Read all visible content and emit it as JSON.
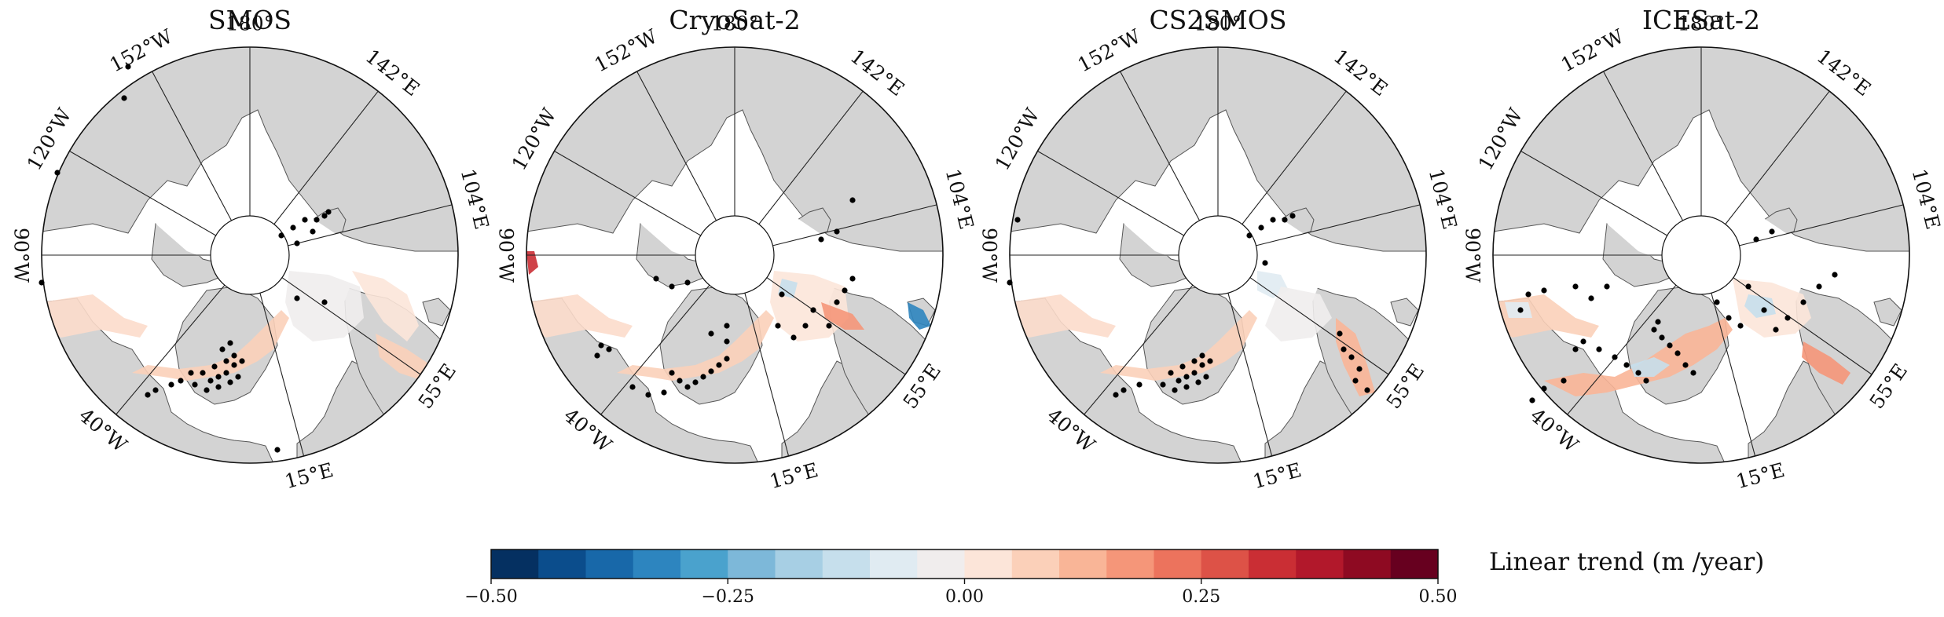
{
  "panels": [
    {
      "title": "SMOS"
    },
    {
      "title": "CryoSat-2"
    },
    {
      "title": "CS2SMOS"
    },
    {
      "title": "ICESat-2"
    }
  ],
  "meridians": [
    {
      "label": "180°",
      "lon": 180
    },
    {
      "label": "152°W",
      "lon": -152
    },
    {
      "label": "142°E",
      "lon": 142
    },
    {
      "label": "120°W",
      "lon": -120
    },
    {
      "label": "104°E",
      "lon": 104
    },
    {
      "label": "90°W",
      "lon": -90
    },
    {
      "label": "55°E",
      "lon": 55
    },
    {
      "label": "40°W",
      "lon": -40
    },
    {
      "label": "15°E",
      "lon": 15
    }
  ],
  "colorbar": {
    "label": "Linear trend (m /year)",
    "vmin": -0.5,
    "vmax": 0.5,
    "tick_values": [
      -0.5,
      -0.25,
      0.0,
      0.25,
      0.5
    ],
    "ticks": [
      "−0.50",
      "−0.25",
      "0.00",
      "0.25",
      "0.50"
    ],
    "colors": [
      "#053061",
      "#0b4d8c",
      "#1868a9",
      "#2d85bf",
      "#4aa2cd",
      "#7db8d9",
      "#a7cfe4",
      "#c6dfec",
      "#e0ebf2",
      "#f0eded",
      "#fce5d9",
      "#fbd0b9",
      "#f9b597",
      "#f59679",
      "#ec735d",
      "#dd5247",
      "#ca2e34",
      "#b2182b",
      "#8e0a22",
      "#67001f"
    ]
  },
  "colors": {
    "land": "#d3d3d3",
    "coast": "#555555",
    "ocean": "#ffffff",
    "grid": "#222222",
    "dot": "#000000"
  }
}
